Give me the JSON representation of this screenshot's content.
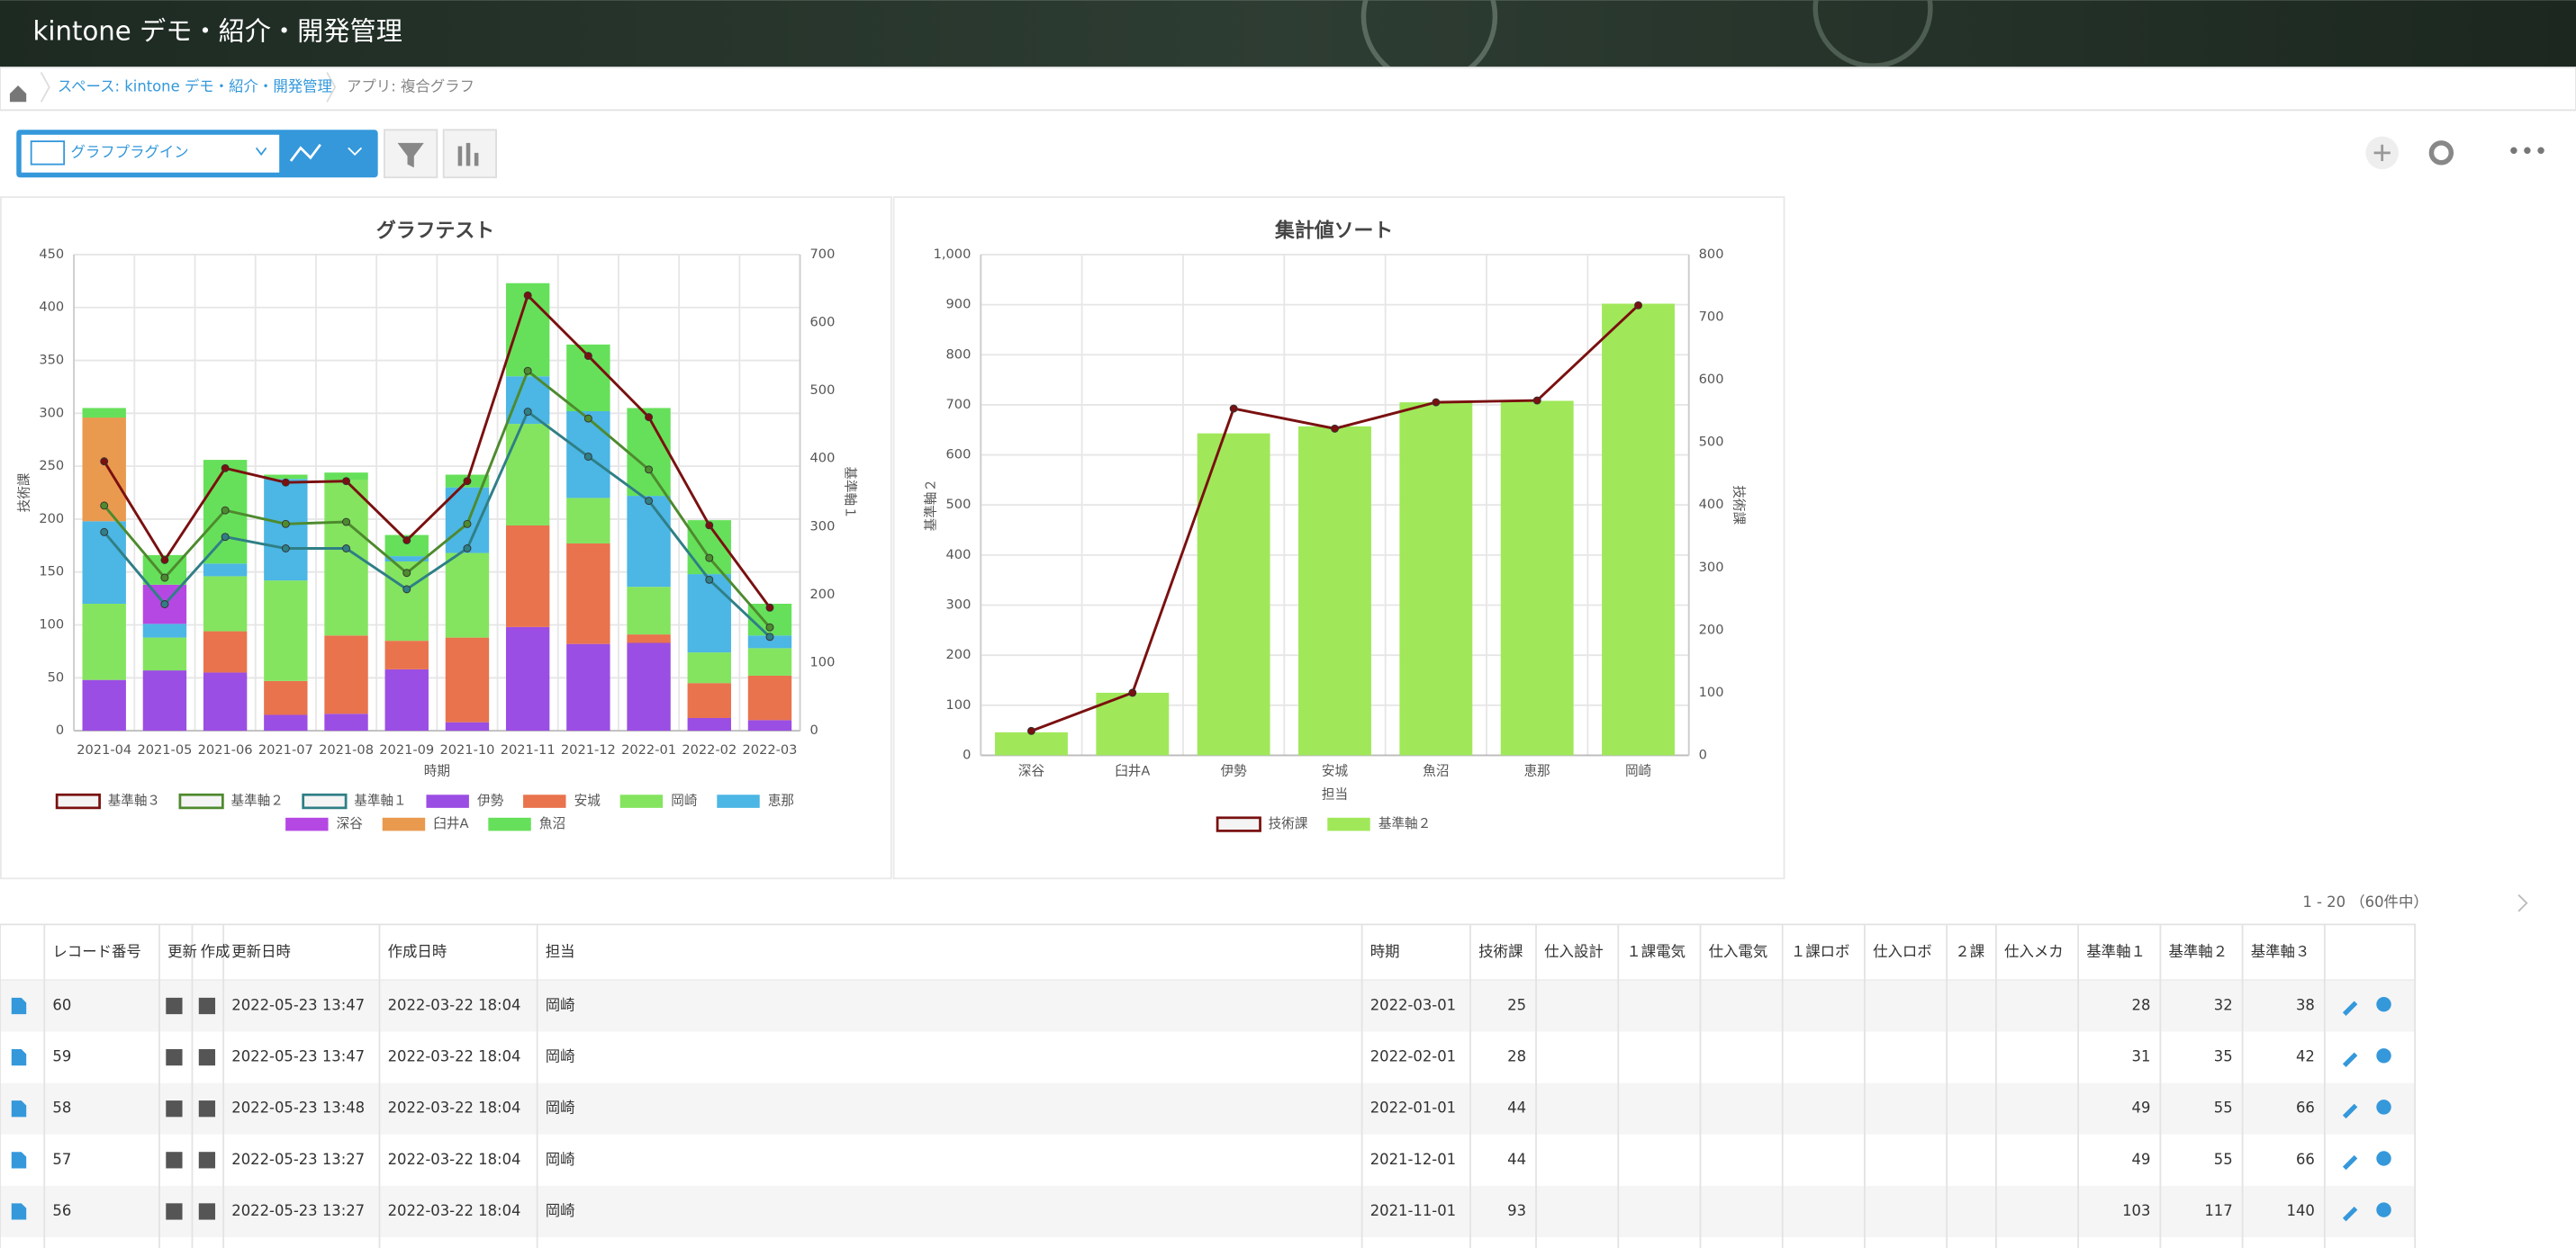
{
  "header": {
    "title": "kintone デモ・紹介・開発管理"
  },
  "breadcrumb": [
    "スペース: kintone デモ・紹介・開発管理",
    "アプリ: 複合グラフ"
  ],
  "toolbar": {
    "view": "グラフプラグイン"
  },
  "chart_data": [
    {
      "type": "bar",
      "stacked": true,
      "title": "グラフテスト",
      "x_label": "時期",
      "y_label": "技術課",
      "y2_label": "基準軸１",
      "grid": true,
      "categories": [
        "2021-04",
        "2021-05",
        "2021-06",
        "2021-07",
        "2021-08",
        "2021-09",
        "2021-10",
        "2021-11",
        "2021-12",
        "2022-01",
        "2022-02",
        "2022-03"
      ],
      "ylim": [
        0,
        450
      ],
      "yticks": [
        0,
        50,
        100,
        150,
        200,
        250,
        300,
        350,
        400,
        450
      ],
      "y2lim": [
        0,
        700
      ],
      "y2ticks": [
        0,
        100,
        200,
        300,
        400,
        500,
        600,
        700
      ],
      "series": [
        {
          "name": "基準軸３",
          "type": "line",
          "axis": "y2",
          "color": "#7a1010",
          "values": [
            396,
            251,
            386,
            365,
            367,
            280,
            367,
            640,
            551,
            461,
            302,
            181
          ]
        },
        {
          "name": "基準軸２",
          "type": "line",
          "axis": "y2",
          "color": "#4e8a2e",
          "values": [
            331,
            225,
            324,
            304,
            307,
            232,
            304,
            529,
            459,
            384,
            254,
            152
          ]
        },
        {
          "name": "基準軸１",
          "type": "line",
          "axis": "y2",
          "color": "#2f7f86",
          "values": [
            292,
            186,
            285,
            268,
            268,
            208,
            268,
            469,
            403,
            338,
            222,
            138
          ]
        },
        {
          "name": "伊勢",
          "color": "#9a4ee3",
          "values": [
            48,
            57,
            55,
            15,
            16,
            58,
            8,
            98,
            82,
            83,
            12,
            10
          ]
        },
        {
          "name": "安城",
          "color": "#e8734d",
          "values": [
            null,
            null,
            39,
            32,
            74,
            27,
            80,
            96,
            95,
            8,
            33,
            42
          ]
        },
        {
          "name": "岡崎",
          "color": "#84e45f",
          "values": [
            72,
            31,
            52,
            95,
            147,
            75,
            80,
            96,
            43,
            45,
            29,
            26
          ]
        },
        {
          "name": "恵那",
          "color": "#4cb6e4",
          "values": [
            78,
            13,
            12,
            96,
            null,
            5,
            62,
            45,
            82,
            86,
            74,
            12
          ]
        },
        {
          "name": "深谷",
          "color": "#b548e3",
          "values": [
            null,
            37,
            null,
            null,
            null,
            null,
            null,
            null,
            null,
            null,
            null,
            null
          ]
        },
        {
          "name": "臼井A",
          "color": "#e99a4f",
          "values": [
            98,
            null,
            null,
            null,
            null,
            null,
            null,
            null,
            null,
            null,
            null,
            null
          ]
        },
        {
          "name": "魚沼",
          "color": "#66e05a",
          "values": [
            9,
            28,
            98,
            4,
            7,
            20,
            12,
            88,
            63,
            83,
            51,
            30
          ]
        }
      ]
    },
    {
      "type": "bar",
      "stacked": false,
      "title": "集計値ソート",
      "x_label": "担当",
      "y_label": "基準軸２",
      "y2_label": "技術課",
      "grid": true,
      "categories": [
        "深谷",
        "臼井A",
        "伊勢",
        "安城",
        "魚沼",
        "恵那",
        "岡崎"
      ],
      "ylim": [
        0,
        1000
      ],
      "yticks": [
        0,
        100,
        200,
        300,
        400,
        500,
        600,
        700,
        800,
        900,
        {
          "value": 1000,
          "label": "1,000"
        }
      ],
      "y2lim": [
        0,
        800
      ],
      "y2ticks": [
        0,
        100,
        200,
        300,
        400,
        500,
        600,
        700,
        800
      ],
      "series": [
        {
          "name": "技術課",
          "type": "line",
          "axis": "y2",
          "color": "#7a1010",
          "values": [
            39,
            100,
            554,
            522,
            564,
            567,
            719
          ]
        },
        {
          "name": "基準軸２",
          "color": "#a0e85a",
          "values": [
            46,
            125,
            643,
            657,
            705,
            708,
            902
          ]
        }
      ]
    }
  ],
  "pagination": "1 - 20 （60件中）",
  "table": {
    "columns": [
      "レコード番号",
      "更新",
      "作成",
      "更新日時",
      "作成日時",
      "担当",
      "時期",
      "技術課",
      "仕入設計",
      "１課電気",
      "仕入電気",
      "１課ロボ",
      "仕入ロボ",
      "２課",
      "仕入メカ",
      "基準軸１",
      "基準軸２",
      "基準軸３"
    ],
    "rows": [
      [
        60,
        null,
        null,
        "2022-05-23 13:47",
        "2022-03-22 18:04",
        "岡崎",
        "2022-03-01",
        25,
        null,
        null,
        null,
        null,
        null,
        null,
        null,
        28,
        32,
        38
      ],
      [
        59,
        null,
        null,
        "2022-05-23 13:47",
        "2022-03-22 18:04",
        "岡崎",
        "2022-02-01",
        28,
        null,
        null,
        null,
        null,
        null,
        null,
        null,
        31,
        35,
        42
      ],
      [
        58,
        null,
        null,
        "2022-05-23 13:48",
        "2022-03-22 18:04",
        "岡崎",
        "2022-01-01",
        44,
        null,
        null,
        null,
        null,
        null,
        null,
        null,
        49,
        55,
        66
      ],
      [
        57,
        null,
        null,
        "2022-05-23 13:27",
        "2022-03-22 18:04",
        "岡崎",
        "2021-12-01",
        44,
        null,
        null,
        null,
        null,
        null,
        null,
        null,
        49,
        55,
        66
      ],
      [
        56,
        null,
        null,
        "2022-05-23 13:27",
        "2022-03-22 18:04",
        "岡崎",
        "2021-11-01",
        93,
        null,
        null,
        null,
        null,
        null,
        null,
        null,
        103,
        117,
        140
      ]
    ]
  }
}
